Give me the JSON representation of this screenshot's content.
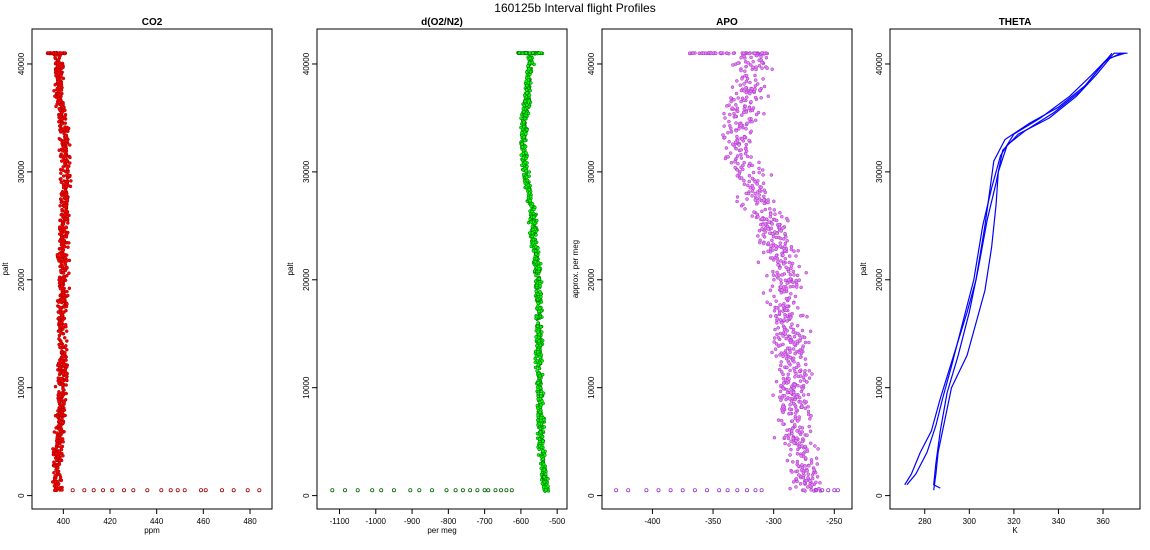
{
  "figure_title": "160125b   Interval flight Profiles",
  "chart_data": [
    {
      "type": "scatter",
      "title": "CO2",
      "xlabel": "ppm",
      "ylabel": "palt",
      "xlim": [
        390,
        486
      ],
      "ylim": [
        -500,
        42500
      ],
      "xticks": [
        400,
        420,
        440,
        460,
        480
      ],
      "yticks": [
        0,
        10000,
        20000,
        30000,
        40000
      ],
      "grid": false,
      "series": [
        {
          "color": "#ff0000",
          "edge": "#a00000",
          "marker": "open-circle",
          "profile": [
            [
              500,
              398
            ],
            [
              2000,
              397
            ],
            [
              5000,
              398
            ],
            [
              8000,
              399
            ],
            [
              10000,
              399
            ],
            [
              13000,
              400
            ],
            [
              16000,
              399
            ],
            [
              19000,
              400
            ],
            [
              22000,
              400
            ],
            [
              25000,
              400
            ],
            [
              28000,
              401
            ],
            [
              31000,
              401
            ],
            [
              34000,
              400
            ],
            [
              36000,
              399
            ],
            [
              38000,
              398
            ],
            [
              40000,
              398
            ],
            [
              41000,
              397
            ]
          ],
          "spread": 3,
          "stack_top": [
            41000,
            393,
            401
          ],
          "outliers": [
            [
              500,
              404
            ],
            [
              500,
              409
            ],
            [
              500,
              413
            ],
            [
              500,
              417
            ],
            [
              500,
              421
            ],
            [
              500,
              426
            ],
            [
              500,
              430
            ],
            [
              500,
              436
            ],
            [
              500,
              442
            ],
            [
              500,
              446
            ],
            [
              500,
              449
            ],
            [
              500,
              452
            ],
            [
              500,
              459
            ],
            [
              500,
              461
            ],
            [
              500,
              468
            ],
            [
              500,
              473
            ],
            [
              500,
              479
            ],
            [
              500,
              484
            ]
          ]
        }
      ]
    },
    {
      "type": "scatter",
      "title": "d(O2/N2)",
      "xlabel": "per meg",
      "ylabel": "palt",
      "xlim": [
        -1140,
        -495
      ],
      "ylim": [
        -500,
        42500
      ],
      "xticks": [
        -1100,
        -1000,
        -900,
        -800,
        -700,
        -600,
        -500
      ],
      "yticks": [
        0,
        10000,
        20000,
        30000,
        40000
      ],
      "grid": false,
      "series": [
        {
          "color": "#00ff00",
          "edge": "#006400",
          "marker": "open-circle",
          "profile": [
            [
              500,
              -530
            ],
            [
              3000,
              -540
            ],
            [
              6000,
              -545
            ],
            [
              10000,
              -548
            ],
            [
              13000,
              -551
            ],
            [
              16000,
              -550
            ],
            [
              19000,
              -553
            ],
            [
              22000,
              -556
            ],
            [
              24000,
              -565
            ],
            [
              26000,
              -568
            ],
            [
              28000,
              -578
            ],
            [
              30000,
              -588
            ],
            [
              32000,
              -592
            ],
            [
              34000,
              -590
            ],
            [
              36000,
              -585
            ],
            [
              38000,
              -580
            ],
            [
              40000,
              -575
            ],
            [
              41000,
              -570
            ]
          ],
          "spread": 14,
          "stack_top": [
            41000,
            -610,
            -540
          ],
          "outliers": [
            [
              500,
              -1120
            ],
            [
              500,
              -1085
            ],
            [
              500,
              -1050
            ],
            [
              500,
              -1010
            ],
            [
              500,
              -985
            ],
            [
              500,
              -950
            ],
            [
              500,
              -905
            ],
            [
              500,
              -880
            ],
            [
              500,
              -845
            ],
            [
              500,
              -805
            ],
            [
              500,
              -780
            ],
            [
              500,
              -760
            ],
            [
              500,
              -740
            ],
            [
              500,
              -720
            ],
            [
              500,
              -700
            ],
            [
              500,
              -690
            ],
            [
              500,
              -670
            ],
            [
              500,
              -655
            ],
            [
              500,
              -640
            ],
            [
              500,
              -625
            ]
          ]
        }
      ]
    },
    {
      "type": "scatter",
      "title": "APO",
      "xlabel": "",
      "ylabel": "approx. per meg",
      "xlim": [
        -435,
        -242
      ],
      "ylim": [
        -500,
        42500
      ],
      "xticks": [
        -400,
        -350,
        -300,
        -250
      ],
      "yticks": [
        0,
        10000,
        20000,
        30000,
        40000
      ],
      "grid": false,
      "series": [
        {
          "color": "#ee82ee",
          "edge": "#9932cc",
          "marker": "open-circle",
          "profile": [
            [
              500,
              -272
            ],
            [
              3000,
              -278
            ],
            [
              6000,
              -283
            ],
            [
              9000,
              -283
            ],
            [
              12000,
              -285
            ],
            [
              15000,
              -287
            ],
            [
              18000,
              -290
            ],
            [
              21000,
              -292
            ],
            [
              24000,
              -300
            ],
            [
              26000,
              -305
            ],
            [
              28000,
              -315
            ],
            [
              30000,
              -322
            ],
            [
              32000,
              -327
            ],
            [
              34000,
              -328
            ],
            [
              36000,
              -325
            ],
            [
              38000,
              -320
            ],
            [
              40000,
              -318
            ],
            [
              41000,
              -315
            ]
          ],
          "spread": 22,
          "stack_top": [
            41000,
            -370,
            -305
          ],
          "outliers": [
            [
              500,
              -430
            ],
            [
              500,
              -420
            ],
            [
              500,
              -405
            ],
            [
              500,
              -395
            ],
            [
              500,
              -385
            ],
            [
              500,
              -375
            ],
            [
              500,
              -365
            ],
            [
              500,
              -355
            ],
            [
              500,
              -345
            ],
            [
              500,
              -338
            ],
            [
              500,
              -330
            ],
            [
              500,
              -322
            ],
            [
              500,
              -315
            ],
            [
              500,
              -310
            ],
            [
              500,
              -265
            ],
            [
              500,
              -260
            ],
            [
              500,
              -255
            ],
            [
              500,
              -250
            ],
            [
              500,
              -247
            ]
          ]
        }
      ]
    },
    {
      "type": "line",
      "title": "THETA",
      "xlabel": "K",
      "ylabel": "palt",
      "xlim": [
        268,
        373
      ],
      "ylim": [
        -500,
        42500
      ],
      "xticks": [
        280,
        300,
        320,
        340,
        360
      ],
      "yticks": [
        0,
        10000,
        20000,
        30000,
        40000
      ],
      "grid": false,
      "series": [
        {
          "color": "#0000ff",
          "points": [
            [
              271,
              1000
            ],
            [
              274,
              2000
            ],
            [
              278,
              4000
            ],
            [
              283,
              6000
            ],
            [
              287,
              9000
            ],
            [
              293,
              13000
            ],
            [
              299,
              17000
            ],
            [
              303,
              20000
            ],
            [
              307,
              25000
            ],
            [
              309,
              28000
            ],
            [
              311,
              31000
            ],
            [
              316,
              33000
            ],
            [
              327,
              34500
            ],
            [
              340,
              36000
            ],
            [
              352,
              38000
            ],
            [
              360,
              40000
            ],
            [
              365,
              41000
            ],
            [
              371,
              41000
            ]
          ]
        },
        {
          "color": "#0000ff",
          "points": [
            [
              272,
              1000
            ],
            [
              276,
              2000
            ],
            [
              281,
              4000
            ],
            [
              285,
              6500
            ],
            [
              288,
              9000
            ],
            [
              292,
              12000
            ],
            [
              297,
              16000
            ],
            [
              302,
              20000
            ],
            [
              306,
              25000
            ],
            [
              310,
              28500
            ],
            [
              314,
              31500
            ],
            [
              320,
              33500
            ],
            [
              332,
              35000
            ],
            [
              345,
              37000
            ],
            [
              355,
              39000
            ],
            [
              362,
              40500
            ],
            [
              370,
              41000
            ]
          ]
        },
        {
          "color": "#0000ff",
          "points": [
            [
              284,
              500
            ],
            [
              285,
              2000
            ],
            [
              286,
              4000
            ],
            [
              289,
              7000
            ],
            [
              292,
              10000
            ],
            [
              299,
              13000
            ],
            [
              303,
              16000
            ],
            [
              307,
              19000
            ],
            [
              310,
              23000
            ],
            [
              312,
              27000
            ],
            [
              313,
              30000
            ],
            [
              317,
              32500
            ],
            [
              325,
              33800
            ],
            [
              338,
              35500
            ],
            [
              350,
              37500
            ],
            [
              358,
              39500
            ],
            [
              364,
              41000
            ]
          ]
        },
        {
          "color": "#0000ff",
          "points": [
            [
              287,
              700
            ],
            [
              284,
              1000
            ],
            [
              285,
              3000
            ],
            [
              287,
              6000
            ],
            [
              290,
              9500
            ],
            [
              295,
              13000
            ],
            [
              300,
              17000
            ],
            [
              304,
              21000
            ],
            [
              308,
              25500
            ],
            [
              312,
              29000
            ],
            [
              315,
              32000
            ],
            [
              322,
              33500
            ],
            [
              336,
              35000
            ],
            [
              348,
              37000
            ],
            [
              357,
              39000
            ],
            [
              363,
              40500
            ],
            [
              368,
              41000
            ]
          ]
        }
      ]
    }
  ]
}
